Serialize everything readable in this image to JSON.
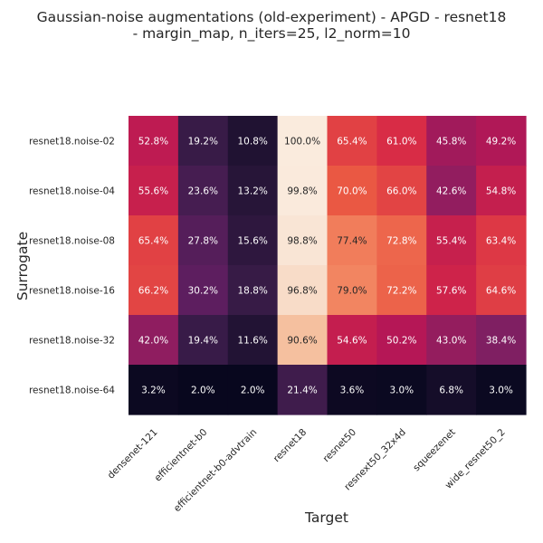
{
  "chart_data": {
    "type": "heatmap",
    "title_lines": [
      "Gaussian-noise augmentations (old-experiment) - APGD - resnet18",
      "- margin_map, n_iters=25, l2_norm=10"
    ],
    "xlabel": "Target",
    "ylabel": "Surrogate",
    "x_categories": [
      "densenet-121",
      "efficientnet-b0",
      "efficientnet-b0-advtrain",
      "resnet18",
      "resnet50",
      "resnext50_32x4d",
      "squeezenet",
      "wide_resnet50_2"
    ],
    "y_categories": [
      "resnet18.noise-02",
      "resnet18.noise-04",
      "resnet18.noise-08",
      "resnet18.noise-16",
      "resnet18.noise-32",
      "resnet18.noise-64"
    ],
    "values": [
      [
        52.8,
        19.2,
        10.8,
        100.0,
        65.4,
        61.0,
        45.8,
        49.2
      ],
      [
        55.6,
        23.6,
        13.2,
        99.8,
        70.0,
        66.0,
        42.6,
        54.8
      ],
      [
        65.4,
        27.8,
        15.6,
        98.8,
        77.4,
        72.8,
        55.4,
        63.4
      ],
      [
        66.2,
        30.2,
        18.8,
        96.8,
        79.0,
        72.2,
        57.6,
        64.6
      ],
      [
        42.0,
        19.4,
        11.6,
        90.6,
        54.6,
        50.2,
        43.0,
        38.4
      ],
      [
        3.2,
        2.0,
        2.0,
        21.4,
        3.6,
        3.0,
        6.8,
        3.0
      ]
    ],
    "value_format": "percent_1dp",
    "value_range": [
      0,
      100
    ],
    "colormap": "rocket",
    "colorbar": false,
    "grid": false
  }
}
